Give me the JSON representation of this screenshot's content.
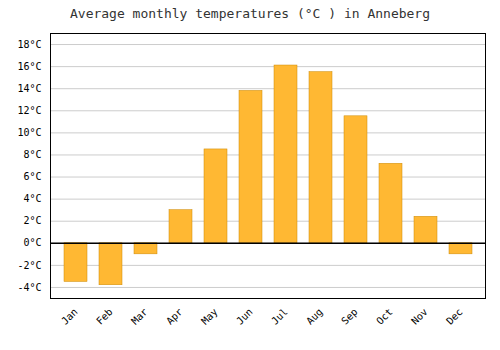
{
  "chart_data": {
    "type": "bar",
    "title": "Average monthly temperatures (°C ) in Anneberg",
    "categories": [
      "Jan",
      "Feb",
      "Mar",
      "Apr",
      "May",
      "Jun",
      "Jul",
      "Aug",
      "Sep",
      "Oct",
      "Nov",
      "Dec"
    ],
    "values": [
      -3.5,
      -3.8,
      -1.0,
      3.0,
      8.5,
      13.8,
      16.1,
      15.5,
      11.5,
      7.2,
      2.4,
      -1.0
    ],
    "color": "#FFB833",
    "ylim": [
      -5,
      19
    ],
    "yticks": [
      {
        "value": -4,
        "label": "-4°C"
      },
      {
        "value": -2,
        "label": "-2°C"
      },
      {
        "value": 0,
        "label": "0°C"
      },
      {
        "value": 2,
        "label": "2°C"
      },
      {
        "value": 4,
        "label": "4°C"
      },
      {
        "value": 6,
        "label": "6°C"
      },
      {
        "value": 8,
        "label": "8°C"
      },
      {
        "value": 10,
        "label": "10°C"
      },
      {
        "value": 12,
        "label": "12°C"
      },
      {
        "value": 14,
        "label": "14°C"
      },
      {
        "value": 16,
        "label": "16°C"
      },
      {
        "value": 18,
        "label": "18°C"
      }
    ],
    "grid": true
  }
}
